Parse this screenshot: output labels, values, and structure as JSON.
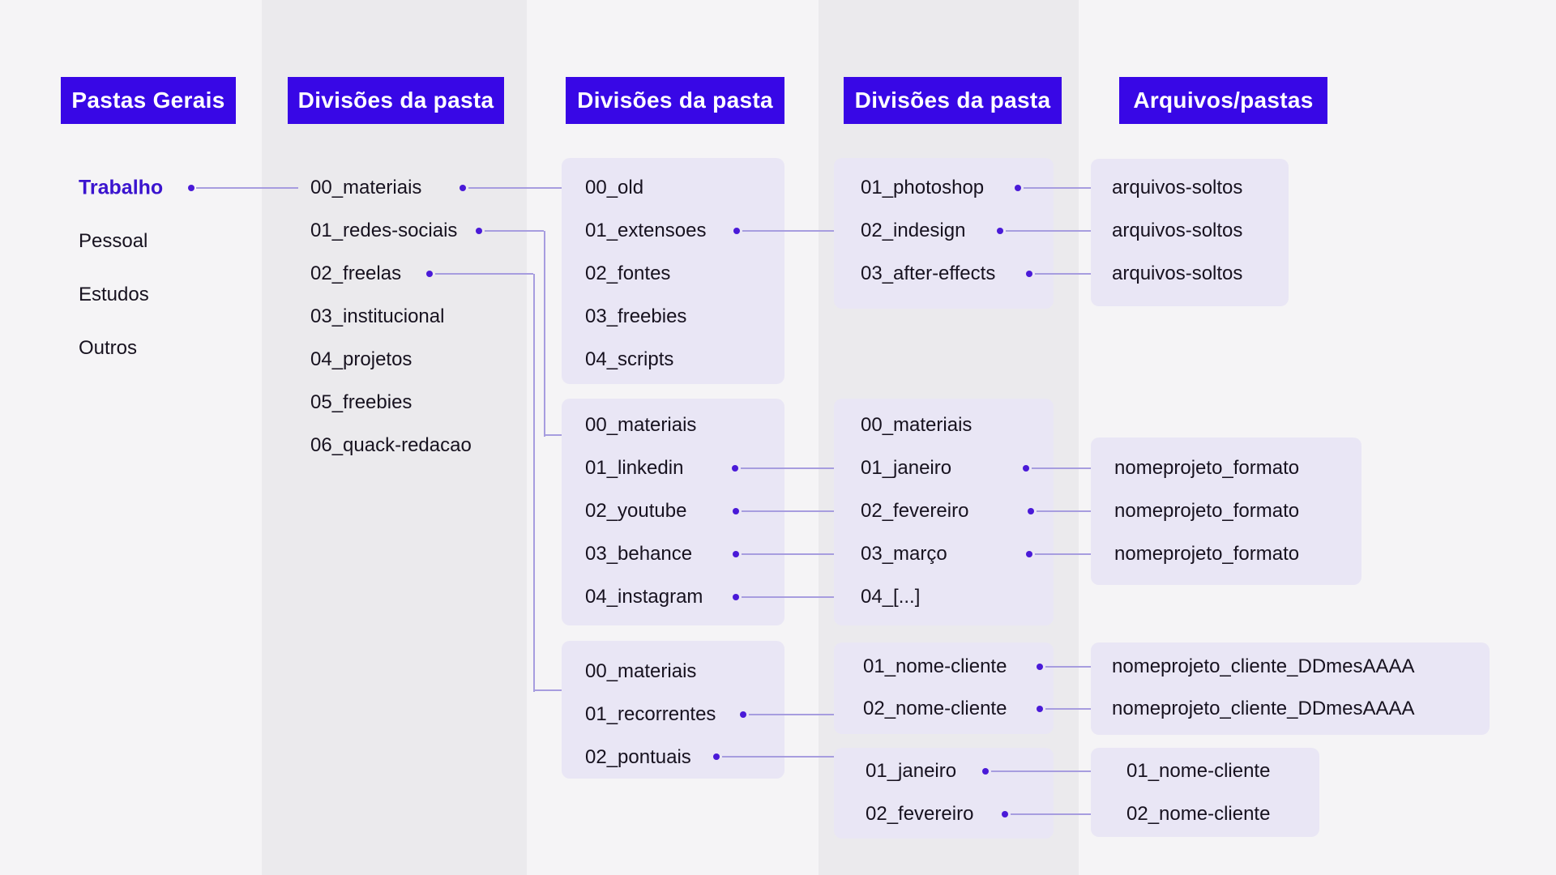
{
  "headers": [
    {
      "label": "Pastas Gerais"
    },
    {
      "label": "Divisões da pasta"
    },
    {
      "label": "Divisões da pasta"
    },
    {
      "label": "Divisões da pasta"
    },
    {
      "label": "Arquivos/pastas"
    }
  ],
  "general_folders": {
    "items": [
      {
        "label": "Trabalho",
        "active": true
      },
      {
        "label": "Pessoal",
        "active": false
      },
      {
        "label": "Estudos",
        "active": false
      },
      {
        "label": "Outros",
        "active": false
      }
    ]
  },
  "work_divisions": {
    "items": [
      "00_materiais",
      "01_redes-sociais",
      "02_freelas",
      "03_institucional",
      "04_projetos",
      "05_freebies",
      "06_quack-redacao"
    ]
  },
  "boxes": {
    "materials": {
      "items": [
        "00_old",
        "01_extensoes",
        "02_fontes",
        "03_freebies",
        "04_scripts"
      ]
    },
    "social": {
      "items": [
        "00_materiais",
        "01_linkedin",
        "02_youtube",
        "03_behance",
        "04_instagram"
      ]
    },
    "freelas": {
      "items": [
        "00_materiais",
        "01_recorrentes",
        "02_pontuais"
      ]
    },
    "extensions": {
      "items": [
        "01_photoshop",
        "02_indesign",
        "03_after-effects"
      ]
    },
    "social_months": {
      "items": [
        "00_materiais",
        "01_janeiro",
        "02_fevereiro",
        "03_março",
        "04_[...]"
      ]
    },
    "recurrent_clients": {
      "items": [
        "01_nome-cliente",
        "02_nome-cliente"
      ]
    },
    "punctual_months": {
      "items": [
        "01_janeiro",
        "02_fevereiro"
      ]
    },
    "loose_files": {
      "items": [
        "arquivos-soltos",
        "arquivos-soltos",
        "arquivos-soltos"
      ]
    },
    "project_files": {
      "items": [
        "nomeprojeto_formato",
        "nomeprojeto_formato",
        "nomeprojeto_formato"
      ]
    },
    "client_project_files": {
      "items": [
        "nomeprojeto_cliente_DDmesAAAA",
        "nomeprojeto_cliente_DDmesAAAA"
      ]
    },
    "client_folders": {
      "items": [
        "01_nome-cliente",
        "02_nome-cliente"
      ]
    }
  },
  "colors": {
    "header_bg": "#3807e6",
    "header_text": "#ffffff",
    "stripe_light": "#f5f4f6",
    "stripe_dark": "#ebeaed",
    "box_bg": "#e9e6f5",
    "text": "#17121f",
    "accent": "#3b14cf",
    "dot": "#4a1ad8",
    "line": "#a79ddf"
  }
}
